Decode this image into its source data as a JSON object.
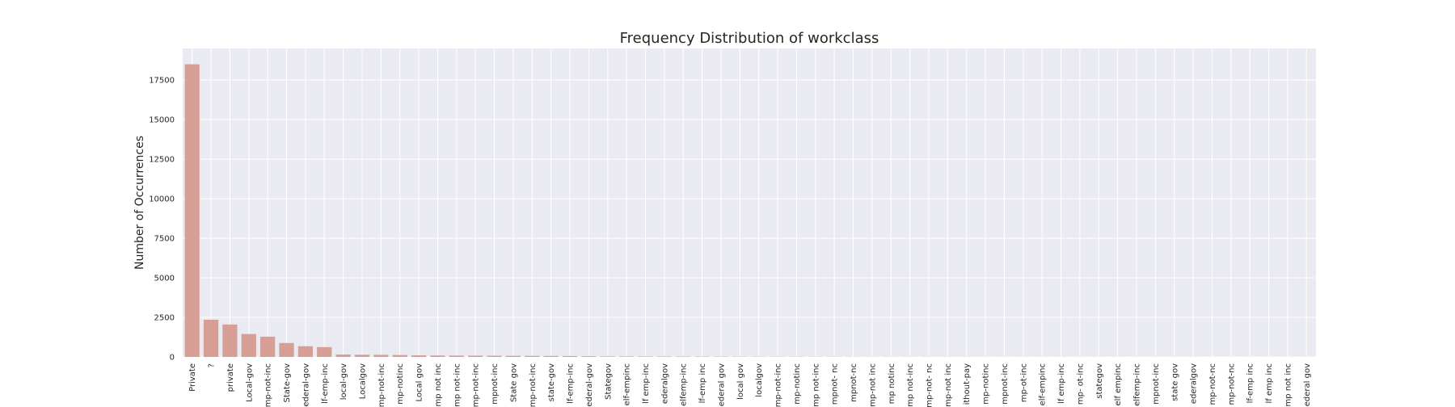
{
  "chart_data": {
    "type": "bar",
    "title": "Frequency Distribution of workclass",
    "xlabel": "",
    "ylabel": "Number of Occurrences",
    "ylim": [
      0,
      19500
    ],
    "yticks": [
      0,
      2500,
      5000,
      7500,
      10000,
      12500,
      15000,
      17500
    ],
    "grid": true,
    "legend": "none",
    "colors": {
      "bar": "#D69E95",
      "background": "#EAEAF2",
      "grid": "#FFFFFF",
      "text": "#262626"
    },
    "categories": [
      "Private",
      "?",
      "private",
      "Local-gov",
      "mp-not-inc",
      "State-gov",
      "ederal-gov",
      "lf-emp-inc",
      "local-gov",
      "Localgov",
      "mp-not-inc",
      "mp-notinc",
      "Local gov",
      "mp not inc",
      "mp not-inc",
      "mp-not-inc",
      "mpnot-inc",
      "State gov",
      "mp-not-inc",
      "state-gov",
      "lf-emp-inc",
      "ederal-gov",
      "Stategov",
      "elf-empinc",
      "lf emp-inc",
      "ederalgov",
      "elfemp-inc",
      "lf-emp inc",
      "ederal gov",
      "local gov",
      "localgov",
      "mp-not-inc",
      "mp-notinc",
      "mp not-inc",
      "mpnot- nc",
      "mpnot-nc",
      "mp-not inc",
      "mp notinc",
      "mp not-inc",
      "mp-not- nc",
      "mp-not inc",
      "ithout-pay",
      "mp-notinc",
      "mpnot-inc",
      "mp-ot-inc",
      "elf-empinc",
      "lf emp-inc",
      "mp- ot-inc",
      "stategov",
      "elf empinc",
      "elfemp-inc",
      "mpnot-inc",
      "state gov",
      "ederalgov",
      "mp-not-nc",
      "mp-not-nc",
      "lf-emp inc",
      "lf emp inc",
      "mp not inc",
      "ederal gov"
    ],
    "values": [
      18500,
      2350,
      2050,
      1450,
      1280,
      880,
      680,
      620,
      150,
      140,
      130,
      120,
      100,
      90,
      85,
      80,
      75,
      70,
      65,
      60,
      55,
      40,
      30,
      28,
      26,
      24,
      22,
      20,
      18,
      16,
      14,
      13,
      12,
      11,
      10,
      9,
      8,
      8,
      7,
      7,
      6,
      6,
      5,
      5,
      5,
      4,
      4,
      4,
      4,
      3,
      3,
      3,
      3,
      3,
      2,
      2,
      2,
      2,
      2,
      2
    ]
  }
}
